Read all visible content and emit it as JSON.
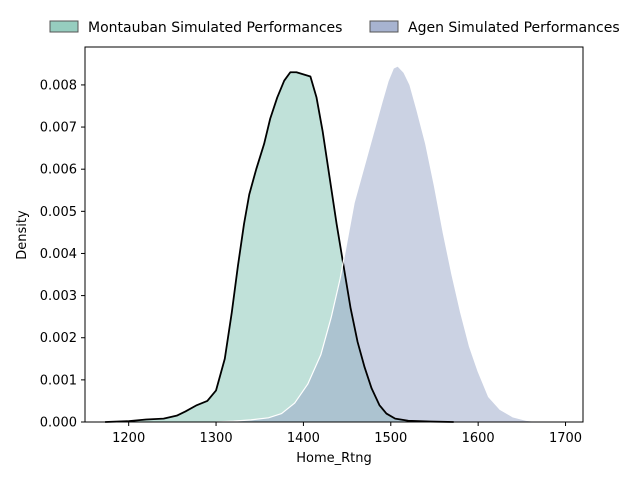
{
  "chart_data": {
    "type": "area",
    "xlabel": "Home_Rtng",
    "ylabel": "Density",
    "xlim": [
      1150,
      1720
    ],
    "ylim": [
      0,
      0.0089
    ],
    "xticks": [
      1200,
      1300,
      1400,
      1500,
      1600,
      1700
    ],
    "xtick_labels": [
      "1200",
      "1300",
      "1400",
      "1500",
      "1600",
      "1700"
    ],
    "yticks": [
      0,
      0.001,
      0.002,
      0.003,
      0.004,
      0.005,
      0.006,
      0.007,
      0.008
    ],
    "ytick_labels": [
      "0.000",
      "0.001",
      "0.002",
      "0.003",
      "0.004",
      "0.005",
      "0.006",
      "0.007",
      "0.008"
    ],
    "grid": false,
    "legend_position": "top (outside plot, horizontal)",
    "series": [
      {
        "name": "Montauban Simulated Performances",
        "fill_color": "#86c6b6",
        "fill_opacity": 0.52,
        "line_color": "#000000",
        "points": [
          [
            1173,
            0.0
          ],
          [
            1200,
            2e-05
          ],
          [
            1220,
            6e-05
          ],
          [
            1240,
            8e-05
          ],
          [
            1255,
            0.00015
          ],
          [
            1265,
            0.00025
          ],
          [
            1278,
            0.0004
          ],
          [
            1290,
            0.0005
          ],
          [
            1300,
            0.00075
          ],
          [
            1310,
            0.0015
          ],
          [
            1318,
            0.0026
          ],
          [
            1325,
            0.0037
          ],
          [
            1332,
            0.0047
          ],
          [
            1338,
            0.0054
          ],
          [
            1346,
            0.006
          ],
          [
            1355,
            0.0066
          ],
          [
            1362,
            0.0072
          ],
          [
            1370,
            0.0077
          ],
          [
            1378,
            0.0081
          ],
          [
            1385,
            0.0083
          ],
          [
            1392,
            0.0083
          ],
          [
            1400,
            0.00825
          ],
          [
            1408,
            0.0082
          ],
          [
            1415,
            0.0077
          ],
          [
            1422,
            0.0069
          ],
          [
            1430,
            0.0058
          ],
          [
            1438,
            0.0047
          ],
          [
            1446,
            0.0037
          ],
          [
            1454,
            0.0027
          ],
          [
            1462,
            0.0019
          ],
          [
            1470,
            0.0013
          ],
          [
            1478,
            0.0008
          ],
          [
            1487,
            0.0004
          ],
          [
            1495,
            0.0002
          ],
          [
            1505,
            8e-05
          ],
          [
            1520,
            3e-05
          ],
          [
            1545,
            1e-05
          ],
          [
            1572,
            0.0
          ]
        ]
      },
      {
        "name": "Agen Simulated Performances",
        "fill_color": "#98a6c8",
        "fill_opacity": 0.5,
        "line_color": "#ffffff",
        "points": [
          [
            1300,
            0.0
          ],
          [
            1320,
            2e-05
          ],
          [
            1340,
            5e-05
          ],
          [
            1360,
            0.0001
          ],
          [
            1375,
            0.0002
          ],
          [
            1390,
            0.00045
          ],
          [
            1405,
            0.0009
          ],
          [
            1420,
            0.0016
          ],
          [
            1432,
            0.0025
          ],
          [
            1442,
            0.0034
          ],
          [
            1450,
            0.0043
          ],
          [
            1458,
            0.0052
          ],
          [
            1466,
            0.0058
          ],
          [
            1474,
            0.0064
          ],
          [
            1482,
            0.007
          ],
          [
            1490,
            0.0076
          ],
          [
            1497,
            0.0081
          ],
          [
            1503,
            0.0084
          ],
          [
            1508,
            0.00845
          ],
          [
            1515,
            0.0083
          ],
          [
            1522,
            0.008
          ],
          [
            1530,
            0.0074
          ],
          [
            1540,
            0.0066
          ],
          [
            1550,
            0.0056
          ],
          [
            1560,
            0.0045
          ],
          [
            1570,
            0.0035
          ],
          [
            1580,
            0.0026
          ],
          [
            1590,
            0.0018
          ],
          [
            1600,
            0.0012
          ],
          [
            1612,
            0.0006
          ],
          [
            1625,
            0.0003
          ],
          [
            1640,
            0.00012
          ],
          [
            1655,
            4e-05
          ],
          [
            1672,
            0.0
          ]
        ]
      }
    ]
  }
}
